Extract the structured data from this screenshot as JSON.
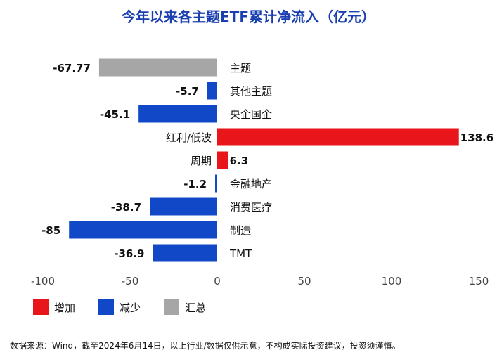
{
  "chart_data": {
    "type": "bar",
    "orientation": "horizontal",
    "title": "今年以来各主题ETF累计净流入（亿元）",
    "categories": [
      "主题",
      "其他主题",
      "央企国企",
      "红利/低波",
      "周期",
      "金融地产",
      "消费医疗",
      "制造",
      "TMT"
    ],
    "values": [
      -67.77,
      -5.7,
      -45.1,
      138.6,
      6.3,
      -1.2,
      -38.7,
      -85,
      -36.9
    ],
    "value_labels": [
      "-67.77",
      "-5.7",
      "-45.1",
      "138.6",
      "6.3",
      "-1.2",
      "-38.7",
      "-85",
      "-36.9"
    ],
    "bar_kinds": [
      "summary",
      "decrease",
      "decrease",
      "increase",
      "increase",
      "decrease",
      "decrease",
      "decrease",
      "decrease"
    ],
    "xlim": [
      -100,
      150
    ],
    "xticks": [
      -100,
      -50,
      0,
      50,
      100,
      150
    ],
    "xtick_labels": [
      "-100",
      "-50",
      "0",
      "50",
      "100",
      "150"
    ],
    "grid": false,
    "legend_position": "bottom-left",
    "legend": [
      {
        "kind": "increase",
        "label": "增加",
        "color": "#e8161b"
      },
      {
        "kind": "decrease",
        "label": "减少",
        "color": "#1148c8"
      },
      {
        "kind": "summary",
        "label": "汇总",
        "color": "#a6a6a6"
      }
    ],
    "colors": {
      "increase": "#e8161b",
      "decrease": "#1148c8",
      "summary": "#a6a6a6"
    }
  },
  "source_note": "数据来源：Wind，截至2024年6月14日，以上行业/数据仅供示意，不构成实际投资建议，投资须谨慎。"
}
